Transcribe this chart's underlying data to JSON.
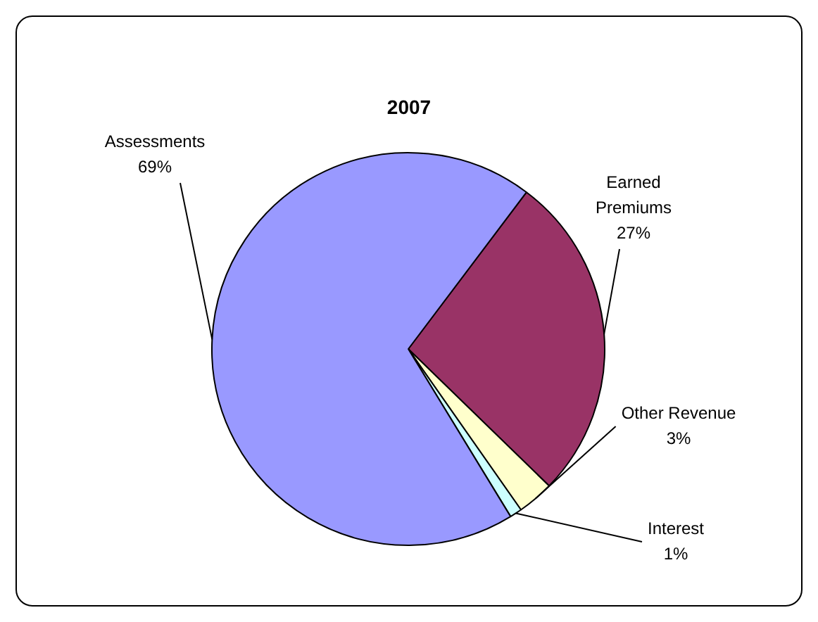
{
  "chart_data": {
    "type": "pie",
    "title": "2007",
    "categories": [
      "Earned Premiums",
      "Other Revenue",
      "Interest",
      "Assessments"
    ],
    "values": [
      27,
      3,
      1,
      69
    ],
    "colors": [
      "#993366",
      "#ffffcc",
      "#ccffff",
      "#9999ff"
    ],
    "value_labels": [
      "27%",
      "3%",
      "1%",
      "69%"
    ],
    "legend": false
  }
}
